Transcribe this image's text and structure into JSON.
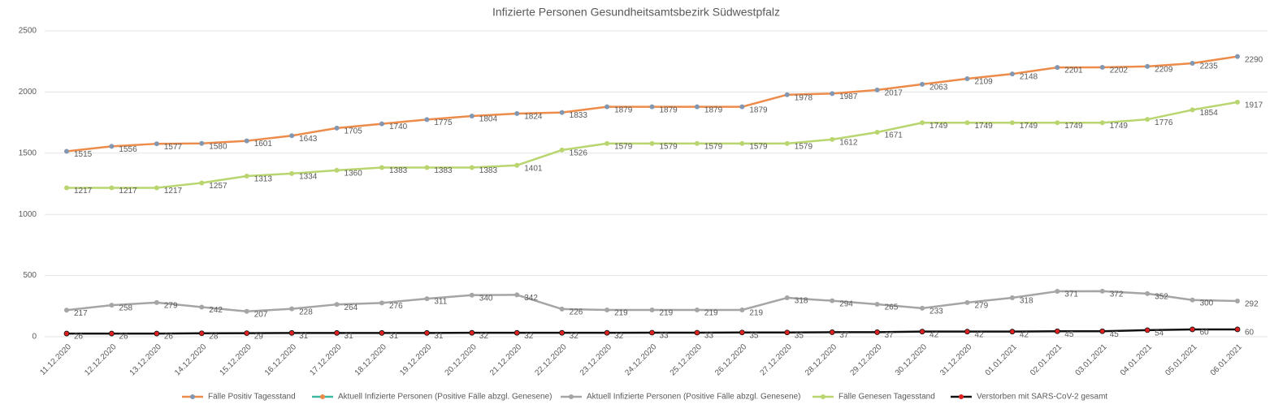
{
  "chart_data": {
    "type": "line",
    "title": "Infizierte Personen Gesundheitsamtsbezirk Südwestpfalz",
    "categories": [
      "11.12.2020",
      "12.12.2020",
      "13.12.2020",
      "14.12.2020",
      "15.12.2020",
      "16.12.2020",
      "17.12.2020",
      "18.12.2020",
      "19.12.2020",
      "20.12.2020",
      "21.12.2020",
      "22.12.2020",
      "23.12.2020",
      "24.12.2020",
      "25.12.2020",
      "26.12.2020",
      "27.12.2020",
      "28.12.2020",
      "29.12.2020",
      "30.12.2020",
      "31.12.2020",
      "01.01.2021",
      "02.01.2021",
      "03.01.2021",
      "04.01.2021",
      "05.01.2021",
      "06.01.2021"
    ],
    "ylim": [
      0,
      2500
    ],
    "yticks": [
      0,
      500,
      1000,
      1500,
      2000,
      2500
    ],
    "grid": true,
    "legend": "bottom",
    "series": [
      {
        "name": "Fälle Positiv Tagesstand",
        "color": "#ed8b4a",
        "marker_color": "#8497b0",
        "values": [
          1515,
          1556,
          1577,
          1580,
          1601,
          1643,
          1705,
          1740,
          1775,
          1804,
          1824,
          1833,
          1879,
          1879,
          1879,
          1879,
          1978,
          1987,
          2017,
          2063,
          2109,
          2148,
          2201,
          2202,
          2209,
          2235,
          2290
        ]
      },
      {
        "name": "Aktuell Infizierte Personen (Positive Fälle abzgl. Genesene)",
        "color": "#3cb9a0",
        "marker_color": "#ed8b4a",
        "values": [
          null,
          null,
          null,
          null,
          null,
          null,
          null,
          null,
          null,
          null,
          null,
          null,
          null,
          null,
          null,
          null,
          null,
          null,
          null,
          null,
          null,
          null,
          null,
          null,
          null,
          null,
          null
        ]
      },
      {
        "name": "Aktuell Infizierte Personen (Positive Fälle abzgl. Genesene)",
        "color": "#a5a5a5",
        "marker_color": "#a5a5a5",
        "values": [
          217,
          258,
          279,
          242,
          207,
          228,
          264,
          276,
          311,
          340,
          342,
          226,
          219,
          219,
          219,
          219,
          318,
          294,
          265,
          233,
          279,
          318,
          371,
          372,
          352,
          300,
          292
        ]
      },
      {
        "name": "Fälle Genesen Tagesstand",
        "color": "#b9d56f",
        "marker_color": "#b9d56f",
        "values": [
          1217,
          1217,
          1217,
          1257,
          1313,
          1334,
          1360,
          1383,
          1383,
          1383,
          1401,
          1526,
          1579,
          1579,
          1579,
          1579,
          1579,
          1612,
          1671,
          1749,
          1749,
          1749,
          1749,
          1749,
          1776,
          1854,
          1917
        ]
      },
      {
        "name": "Verstorben mit SARS-CoV-2 gesamt",
        "color": "#111111",
        "marker_color": "#e02020",
        "values": [
          26,
          26,
          26,
          28,
          29,
          31,
          31,
          31,
          31,
          32,
          32,
          32,
          32,
          33,
          33,
          35,
          35,
          37,
          37,
          42,
          42,
          42,
          45,
          45,
          54,
          60,
          60
        ]
      }
    ]
  }
}
